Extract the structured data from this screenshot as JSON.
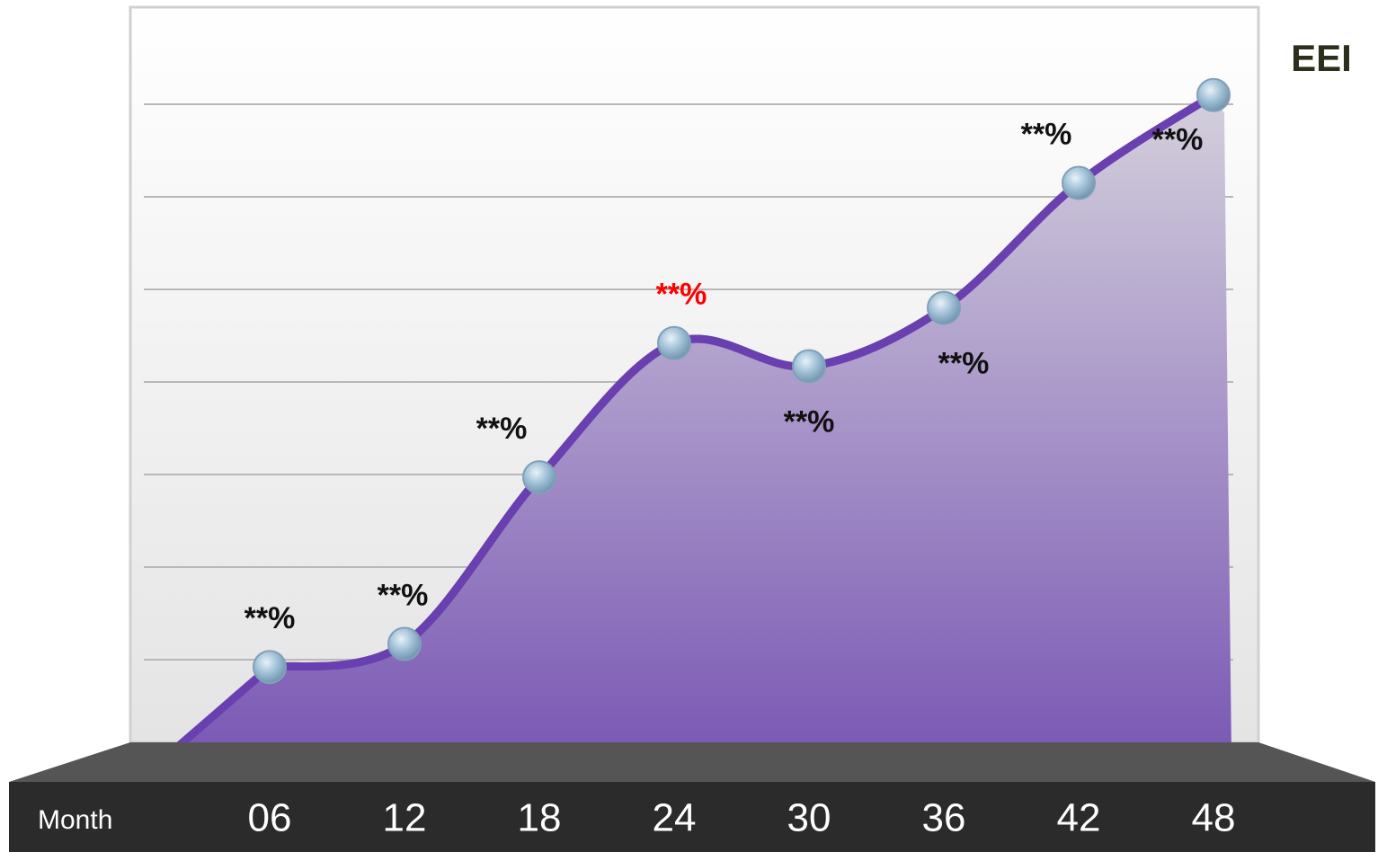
{
  "chart_data": {
    "type": "area",
    "title": "EEI",
    "x_label": "Month",
    "categories": [
      "06",
      "12",
      "18",
      "24",
      "30",
      "36",
      "42",
      "48"
    ],
    "values": [
      0.92,
      1.17,
      2.97,
      4.42,
      4.17,
      4.8,
      6.15,
      7.1
    ],
    "value_labels": [
      "**%",
      "**%",
      "**%",
      "**%",
      "**%",
      "**%",
      "**%",
      "**%"
    ],
    "label_colors": [
      "#111111",
      "#111111",
      "#111111",
      "#ff0000",
      "#111111",
      "#111111",
      "#111111",
      "#111111"
    ],
    "color": "#6a3fb0",
    "ylim": [
      0,
      8
    ],
    "yticks": [
      1,
      2,
      3,
      4,
      5,
      6,
      7
    ],
    "grid": true
  }
}
